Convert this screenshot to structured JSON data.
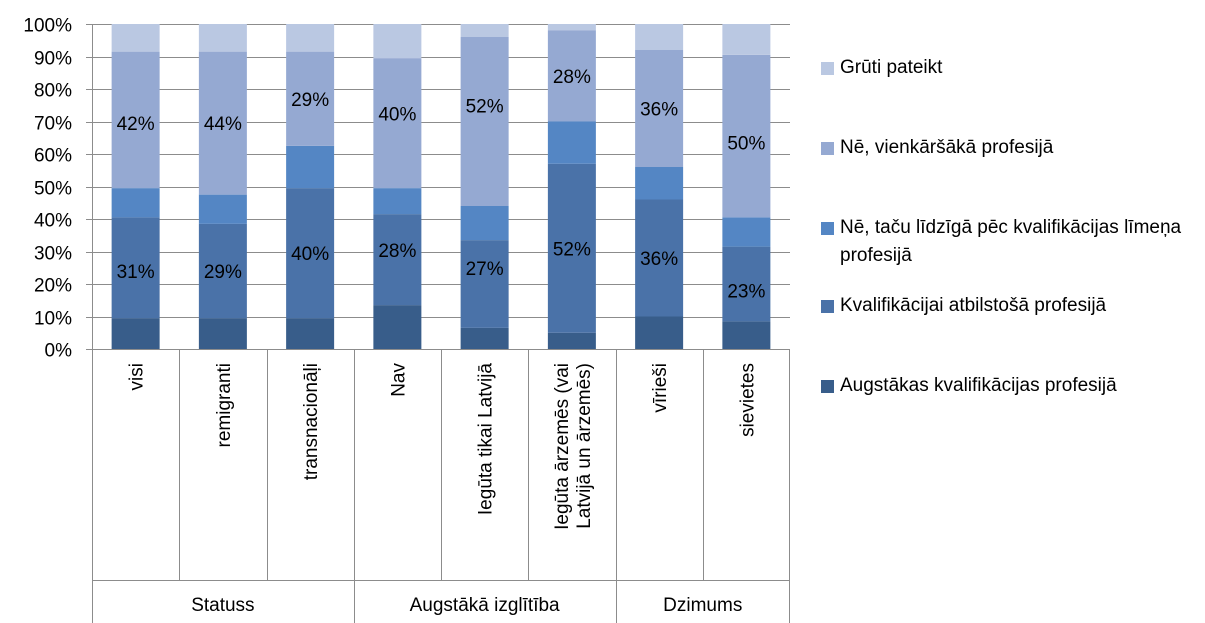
{
  "chart_data": {
    "type": "bar",
    "stacked": true,
    "percent": true,
    "ylim": [
      0,
      100
    ],
    "yticks": [
      "0%",
      "10%",
      "20%",
      "30%",
      "40%",
      "50%",
      "60%",
      "70%",
      "80%",
      "90%",
      "100%"
    ],
    "categories": [
      "visi",
      "remigranti",
      "transnacionāļi",
      "Nav",
      "Iegūta tikai Latvijā",
      "Iegūta ārzemēs (vai Latvijā un ārzemēs)",
      "vīrieši",
      "sievietes"
    ],
    "category_lines": [
      [
        "visi"
      ],
      [
        "remigranti"
      ],
      [
        "transnacionāļi"
      ],
      [
        "Nav"
      ],
      [
        "Iegūta tikai Latvijā"
      ],
      [
        "Iegūta ārzemēs (vai",
        "Latvijā un ārzemēs)"
      ],
      [
        "vīrieši"
      ],
      [
        "sievietes"
      ]
    ],
    "groups": [
      {
        "label": "Statuss",
        "count": 3
      },
      {
        "label": "Augstākā izglītība",
        "count": 3
      },
      {
        "label": "Dzimums",
        "count": 2
      }
    ],
    "series": [
      {
        "name": "Augstākas kvalifikācijas profesijā",
        "color": "#385d8a",
        "values": [
          9.5,
          9.5,
          9.5,
          13.5,
          6.5,
          5,
          10,
          8.5
        ],
        "labels": [
          "",
          "",
          "",
          "",
          "",
          "",
          "",
          ""
        ]
      },
      {
        "name": "Kvalifikācijai atbilstošā profesijā",
        "color": "#4a72a8",
        "values": [
          31,
          29,
          40,
          28,
          27,
          52,
          36,
          23
        ],
        "labels": [
          "31%",
          "29%",
          "40%",
          "28%",
          "27%",
          "52%",
          "36%",
          "23%"
        ]
      },
      {
        "name": "Nē, taču līdzīgā pēc kvalifikācijas līmeņa profesijā",
        "color": "#5486c4",
        "values": [
          9,
          9,
          13,
          8,
          10.5,
          13,
          10,
          9
        ],
        "labels": [
          "",
          "",
          "",
          "",
          "",
          "",
          "",
          ""
        ]
      },
      {
        "name": "Nē, vienkāršākā profesijā",
        "color": "#95a9d2",
        "values": [
          42,
          44,
          29,
          40,
          52,
          28,
          36,
          50
        ],
        "labels": [
          "42%",
          "44%",
          "29%",
          "40%",
          "52%",
          "28%",
          "36%",
          "50%"
        ]
      },
      {
        "name": "Grūti pateikt",
        "color": "#bac8e2",
        "values": [
          8.5,
          8.5,
          8.5,
          10.5,
          4,
          2,
          8,
          9.5
        ],
        "labels": [
          "",
          "",
          "",
          "",
          "",
          "",
          "",
          ""
        ]
      }
    ],
    "label_offsets": [
      [
        -1,
        0,
        0,
        3,
        5,
        0,
        0,
        -2
      ],
      [
        -1,
        0,
        0,
        3,
        5,
        0,
        0,
        -2
      ]
    ],
    "legend": {
      "position": "right",
      "order": [
        "Grūti pateikt",
        "Nē, vienkāršākā profesijā",
        "Nē, taču līdzīgā pēc kvalifikācijas līmeņa profesijā",
        "Kvalifikācijai atbilstošā profesijā",
        "Augstākas kvalifikācijas profesijā"
      ]
    },
    "grid": true
  }
}
